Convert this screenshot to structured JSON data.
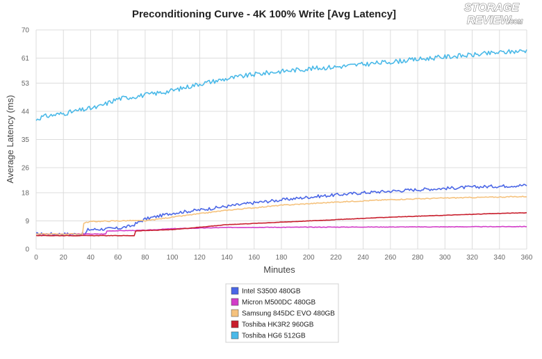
{
  "logo": {
    "line1": "STORAGE",
    "line2": "REVIEW",
    "suffix": ".COM"
  },
  "chart_data": {
    "type": "line",
    "title": "Preconditioning Curve - 4K 100% Write [Avg Latency]",
    "xlabel": "Minutes",
    "ylabel": "Average Latency (ms)",
    "xlim": [
      0,
      360
    ],
    "ylim": [
      0,
      70
    ],
    "x_ticks": [
      "0",
      "20",
      "40",
      "60",
      "80",
      "100",
      "120",
      "140",
      "160",
      "180",
      "200",
      "220",
      "240",
      "260",
      "280",
      "300",
      "320",
      "340",
      "360"
    ],
    "y_ticks": [
      "0",
      "9",
      "18",
      "26",
      "35",
      "44",
      "53",
      "61",
      "70"
    ],
    "grid": true,
    "legend_position": "bottom-center",
    "series": [
      {
        "name": "Intel S3500 480GB",
        "color": "#4a66e6",
        "noise": 0.5,
        "points": [
          [
            0,
            4.8
          ],
          [
            36,
            4.8
          ],
          [
            38,
            6.2
          ],
          [
            60,
            6.6
          ],
          [
            70,
            7.4
          ],
          [
            80,
            9.6
          ],
          [
            100,
            11.5
          ],
          [
            120,
            12.5
          ],
          [
            160,
            14.8
          ],
          [
            200,
            16.6
          ],
          [
            240,
            18.0
          ],
          [
            280,
            19.0
          ],
          [
            320,
            19.8
          ],
          [
            360,
            20.4
          ]
        ]
      },
      {
        "name": "Micron M500DC 480GB",
        "color": "#d23cc8",
        "noise": 0.08,
        "points": [
          [
            0,
            4.8
          ],
          [
            51,
            4.8
          ],
          [
            52,
            5.8
          ],
          [
            80,
            6.0
          ],
          [
            100,
            6.5
          ],
          [
            140,
            6.9
          ],
          [
            200,
            7.0
          ],
          [
            300,
            7.1
          ],
          [
            360,
            7.2
          ]
        ]
      },
      {
        "name": "Samsung 845DC EVO 480GB",
        "color": "#f5c27d",
        "noise": 0.15,
        "points": [
          [
            0,
            4.8
          ],
          [
            34,
            4.8
          ],
          [
            35,
            8.3
          ],
          [
            40,
            8.8
          ],
          [
            70,
            9.1
          ],
          [
            80,
            9.0
          ],
          [
            100,
            10.2
          ],
          [
            140,
            12.4
          ],
          [
            180,
            14.0
          ],
          [
            220,
            15.0
          ],
          [
            260,
            15.8
          ],
          [
            300,
            16.3
          ],
          [
            360,
            16.8
          ]
        ]
      },
      {
        "name": "Toshiba HK3R2 960GB",
        "color": "#c81e2c",
        "noise": 0.06,
        "points": [
          [
            0,
            4.3
          ],
          [
            72,
            4.3
          ],
          [
            73,
            5.8
          ],
          [
            100,
            6.2
          ],
          [
            140,
            7.8
          ],
          [
            180,
            8.6
          ],
          [
            220,
            9.4
          ],
          [
            260,
            10.2
          ],
          [
            300,
            10.8
          ],
          [
            340,
            11.4
          ],
          [
            360,
            11.6
          ]
        ]
      },
      {
        "name": "Toshiba HG6 512GB",
        "color": "#4ab9e8",
        "noise": 0.75,
        "points": [
          [
            0,
            41.5
          ],
          [
            5,
            42.3
          ],
          [
            20,
            43.3
          ],
          [
            38,
            44.8
          ],
          [
            45,
            45.3
          ],
          [
            60,
            48.0
          ],
          [
            80,
            49.2
          ],
          [
            100,
            50.6
          ],
          [
            120,
            52.8
          ],
          [
            140,
            54.4
          ],
          [
            160,
            55.8
          ],
          [
            180,
            56.8
          ],
          [
            200,
            57.6
          ],
          [
            220,
            58.2
          ],
          [
            240,
            59.0
          ],
          [
            260,
            59.8
          ],
          [
            280,
            60.6
          ],
          [
            300,
            61.4
          ],
          [
            320,
            62.0
          ],
          [
            340,
            62.8
          ],
          [
            360,
            63.4
          ]
        ]
      }
    ]
  }
}
